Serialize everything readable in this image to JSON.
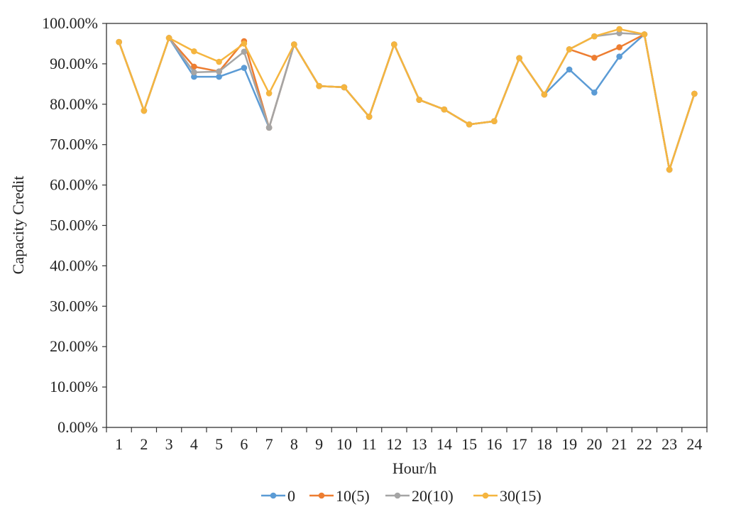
{
  "chart_data": {
    "type": "line",
    "title": "",
    "xlabel": "Hour/h",
    "ylabel": "Capacity Credit",
    "x": [
      "1",
      "2",
      "3",
      "4",
      "5",
      "6",
      "7",
      "8",
      "9",
      "10",
      "11",
      "12",
      "13",
      "14",
      "15",
      "16",
      "17",
      "18",
      "19",
      "20",
      "21",
      "22",
      "23",
      "24"
    ],
    "ylim": [
      0,
      100
    ],
    "yticks": [
      0,
      10,
      20,
      30,
      40,
      50,
      60,
      70,
      80,
      90,
      100
    ],
    "ytick_labels": [
      "0.00%",
      "10.00%",
      "20.00%",
      "30.00%",
      "40.00%",
      "50.00%",
      "60.00%",
      "70.00%",
      "80.00%",
      "90.00%",
      "100.00%"
    ],
    "grid": false,
    "legend_position": "bottom",
    "series": [
      {
        "name": "0",
        "color": "#5B9BD5",
        "values": [
          95.4,
          78.4,
          96.4,
          86.8,
          86.8,
          89.0,
          74.2,
          94.8,
          84.5,
          84.2,
          76.9,
          94.8,
          81.1,
          78.7,
          75.0,
          75.8,
          91.4,
          82.4,
          88.6,
          82.9,
          91.8,
          97.3,
          63.8,
          82.6
        ]
      },
      {
        "name": "10(5)",
        "color": "#ED7D31",
        "values": [
          95.4,
          78.4,
          96.4,
          89.3,
          88.1,
          95.6,
          74.2,
          94.8,
          84.5,
          84.2,
          76.9,
          94.8,
          81.1,
          78.7,
          75.0,
          75.8,
          91.4,
          82.4,
          93.6,
          91.5,
          94.1,
          97.3,
          63.8,
          82.6
        ]
      },
      {
        "name": "20(10)",
        "color": "#A5A5A5",
        "values": [
          95.4,
          78.4,
          96.4,
          87.9,
          88.1,
          93.0,
          74.2,
          94.8,
          84.5,
          84.2,
          76.9,
          94.8,
          81.1,
          78.7,
          75.0,
          75.8,
          91.4,
          82.4,
          93.6,
          96.8,
          97.6,
          97.3,
          63.8,
          82.6
        ]
      },
      {
        "name": "30(15)",
        "color": "#F5B53F",
        "values": [
          95.4,
          78.4,
          96.4,
          93.1,
          90.5,
          95.0,
          82.7,
          94.8,
          84.5,
          84.2,
          76.9,
          94.8,
          81.1,
          78.7,
          75.0,
          75.8,
          91.4,
          82.4,
          93.6,
          96.8,
          98.6,
          97.3,
          63.8,
          82.6
        ]
      }
    ]
  }
}
